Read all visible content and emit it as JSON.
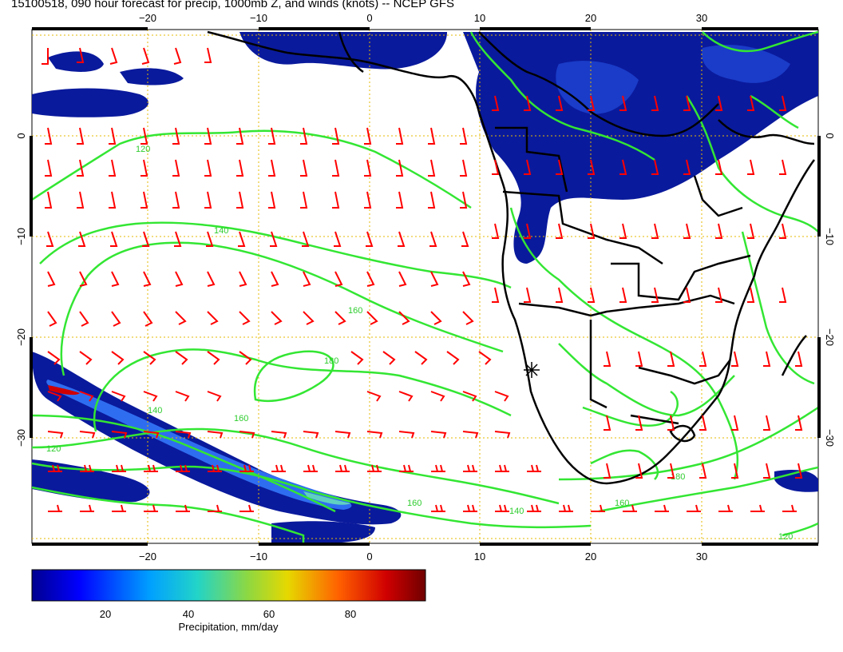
{
  "title": "15100518, 090 hour forecast for precip, 1000mb Z, and winds (knots) -- NCEP GFS",
  "map": {
    "lon_ticks_top": [
      "−20",
      "−10",
      "0",
      "10",
      "20",
      "30"
    ],
    "lon_ticks_bottom": [
      "−20",
      "−10",
      "0",
      "10",
      "20",
      "30"
    ],
    "lat_ticks_left": [
      "0",
      "−10",
      "−20",
      "−30"
    ],
    "lat_ticks_right": [
      "0",
      "−10",
      "−20",
      "−30"
    ],
    "contour_labels": [
      "120",
      "140",
      "160",
      "180",
      "160",
      "140",
      "120",
      "160",
      "180",
      "160",
      "140",
      "120"
    ],
    "colors": {
      "contour": "#33e633",
      "wind_barb": "#ff0000",
      "coastline": "#000000",
      "grid": "#e6b800",
      "precip_low": "#0a1a9c",
      "precip_high": "#cc0000"
    }
  },
  "colorbar": {
    "label": "Precipitation, mm/day",
    "ticks": [
      "20",
      "40",
      "60",
      "80"
    ],
    "range": [
      0,
      100
    ]
  }
}
